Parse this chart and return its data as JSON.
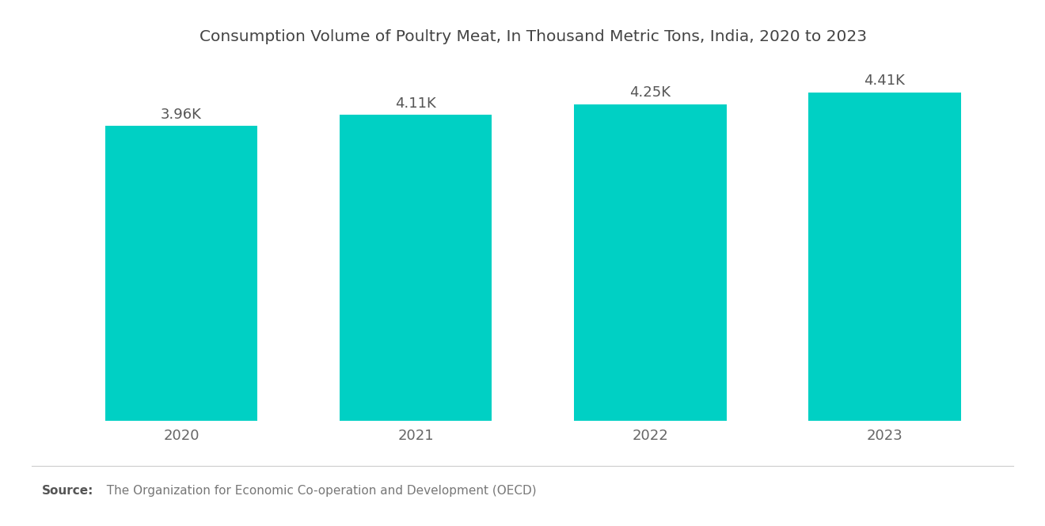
{
  "title": "Consumption Volume of Poultry Meat, In Thousand Metric Tons, India, 2020 to 2023",
  "categories": [
    "2020",
    "2021",
    "2022",
    "2023"
  ],
  "values": [
    3960,
    4110,
    4250,
    4410
  ],
  "labels": [
    "3.96K",
    "4.11K",
    "4.25K",
    "4.41K"
  ],
  "bar_color": "#00D0C4",
  "background_color": "#ffffff",
  "source_bold": "Source:",
  "source_text": "  The Organization for Economic Co-operation and Development (OECD)",
  "title_fontsize": 14.5,
  "label_fontsize": 13,
  "tick_fontsize": 13,
  "source_fontsize": 11,
  "ylim": [
    0,
    4800
  ],
  "bar_width": 0.65
}
